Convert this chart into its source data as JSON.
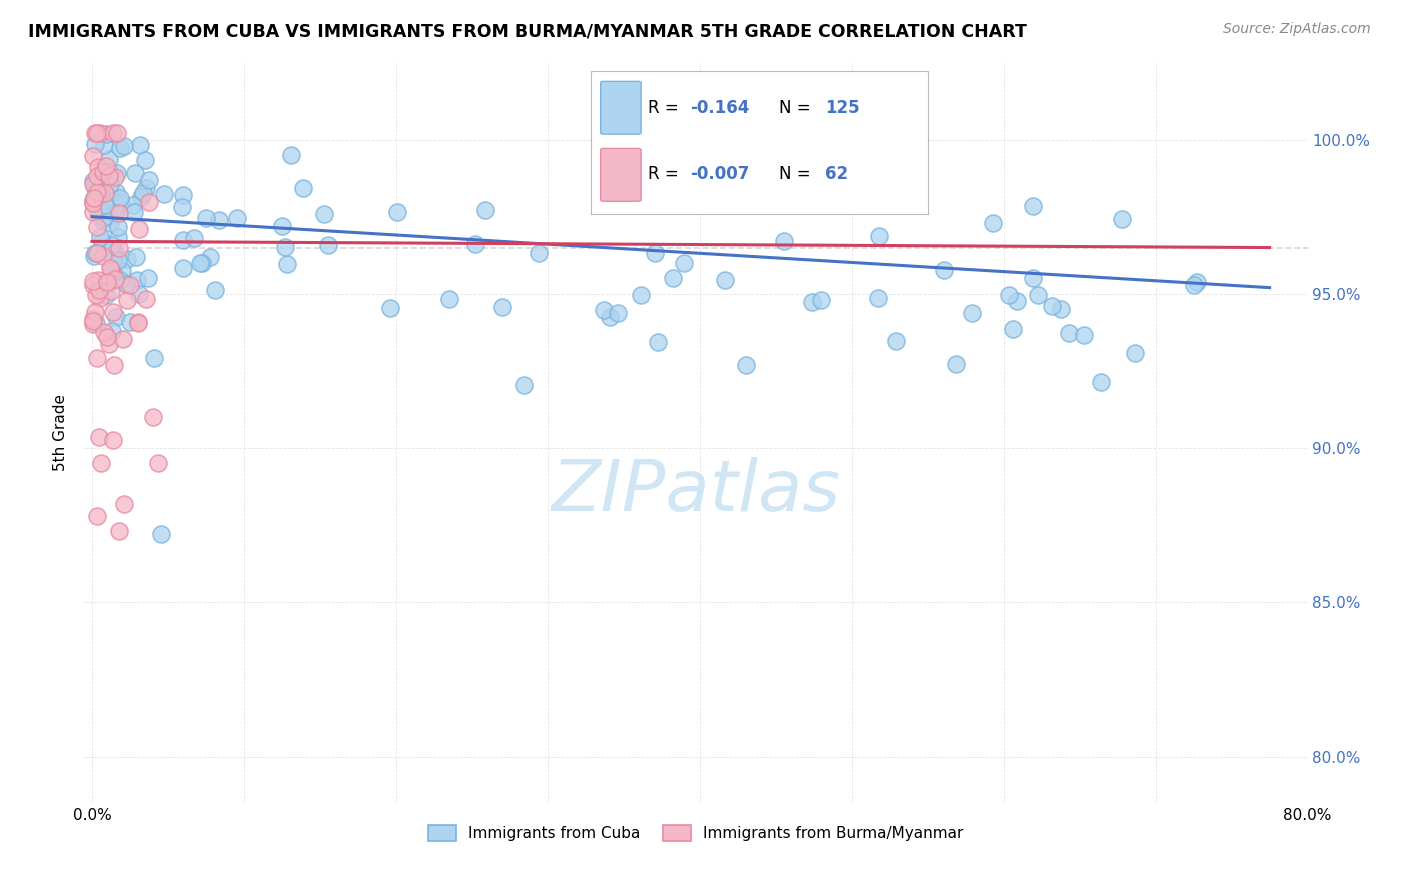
{
  "title": "IMMIGRANTS FROM CUBA VS IMMIGRANTS FROM BURMA/MYANMAR 5TH GRADE CORRELATION CHART",
  "source": "Source: ZipAtlas.com",
  "ylabel": "5th Grade",
  "legend_r_cuba": "-0.164",
  "legend_n_cuba": "125",
  "legend_r_burma": "-0.007",
  "legend_n_burma": "62",
  "cuba_fill_color": "#aed4f0",
  "cuba_edge_color": "#7ab4de",
  "burma_fill_color": "#f4b8c8",
  "burma_edge_color": "#e88aa0",
  "cuba_line_color": "#4472c4",
  "burma_line_color": "#d04060",
  "right_tick_color": "#4472c4",
  "watermark_color": "#cce4f4",
  "legend_value_color": "#4472c4"
}
